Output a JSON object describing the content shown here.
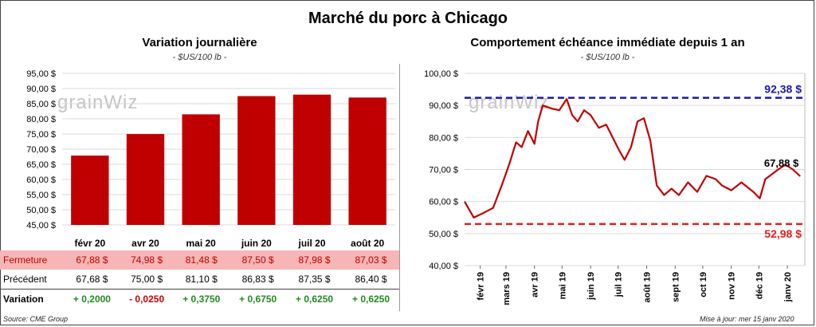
{
  "title": "Marché du porc à Chicago",
  "left": {
    "subtitle": "Variation journalière",
    "unit": "- $US/100 lb -",
    "watermark": "grainWiz",
    "table": {
      "close_label": "Fermeture",
      "prev_label": "Précédent",
      "var_label": "Variation",
      "close_values": [
        "67,88 $",
        "74,98 $",
        "81,48 $",
        "87,50 $",
        "87,98 $",
        "87,03 $"
      ],
      "prev_values": [
        "67,68 $",
        "75,00 $",
        "81,10 $",
        "86,83 $",
        "87,35 $",
        "86,40 $"
      ],
      "var_values": [
        "+ 0,2000",
        "- 0,0250",
        "+ 0,3750",
        "+ 0,6750",
        "+ 0,6250",
        "+ 0,6250"
      ]
    },
    "source": "Source: CME Group"
  },
  "right": {
    "subtitle": "Comportement  échéance immédiate depuis 1 an",
    "unit": "- $US/100 lb -",
    "watermark": "grainWiz",
    "update": "Mise à jour: mer 15 janv 2020"
  },
  "colors": {
    "bar": "#c00000",
    "line": "#c00000",
    "max_line": "#1a1aa6",
    "min_line": "#e02020",
    "positive": "#1e8c1e",
    "negative": "#d00000"
  },
  "chart_data": [
    {
      "type": "bar",
      "title": "Variation journalière",
      "ylabel": "- $US/100 lb -",
      "categories": [
        "févr 20",
        "avr 20",
        "mai 20",
        "juin 20",
        "juil 20",
        "août 20"
      ],
      "values": [
        67.88,
        74.98,
        81.48,
        87.5,
        87.98,
        87.03
      ],
      "ylim": [
        45,
        95
      ],
      "yticks": [
        "45,00 $",
        "50,00 $",
        "55,00 $",
        "60,00 $",
        "65,00 $",
        "70,00 $",
        "75,00 $",
        "80,00 $",
        "85,00 $",
        "90,00 $",
        "95,00 $"
      ],
      "grid": true
    },
    {
      "type": "line",
      "title": "Comportement  échéance immédiate depuis 1 an",
      "ylabel": "- $US/100 lb -",
      "ylim": [
        40,
        100
      ],
      "yticks": [
        "40,00 $",
        "50,00 $",
        "60,00 $",
        "70,00 $",
        "80,00 $",
        "90,00 $",
        "100,00 $"
      ],
      "xticks": [
        "févr 19",
        "mars 19",
        "avr 19",
        "mai 19",
        "juin 19",
        "juil 19",
        "août 19",
        "sept 19",
        "oct 19",
        "nov 19",
        "déc 19",
        "janv 20"
      ],
      "x": [
        "2019-01-15",
        "2019-01-25",
        "2019-02-05",
        "2019-02-15",
        "2019-02-25",
        "2019-03-05",
        "2019-03-12",
        "2019-03-18",
        "2019-03-25",
        "2019-04-01",
        "2019-04-05",
        "2019-04-10",
        "2019-04-20",
        "2019-04-28",
        "2019-05-06",
        "2019-05-12",
        "2019-05-18",
        "2019-05-25",
        "2019-06-01",
        "2019-06-10",
        "2019-06-18",
        "2019-06-25",
        "2019-07-02",
        "2019-07-08",
        "2019-07-15",
        "2019-07-22",
        "2019-07-29",
        "2019-08-05",
        "2019-08-12",
        "2019-08-20",
        "2019-08-28",
        "2019-09-05",
        "2019-09-15",
        "2019-09-25",
        "2019-10-05",
        "2019-10-15",
        "2019-10-22",
        "2019-11-01",
        "2019-11-12",
        "2019-11-25",
        "2019-12-02",
        "2019-12-08",
        "2019-12-15",
        "2019-12-22",
        "2019-12-30",
        "2020-01-07",
        "2020-01-15"
      ],
      "y": [
        60.0,
        55.0,
        56.5,
        58.0,
        65.5,
        72.0,
        78.5,
        77.0,
        82.0,
        78.0,
        85.0,
        90.0,
        89.0,
        88.5,
        92.0,
        87.0,
        85.0,
        88.5,
        87.0,
        83.0,
        84.0,
        80.0,
        76.0,
        73.0,
        77.0,
        85.0,
        86.0,
        79.0,
        65.0,
        62.0,
        64.0,
        62.0,
        66.0,
        63.0,
        68.0,
        67.0,
        65.0,
        63.5,
        66.0,
        63.0,
        61.0,
        67.0,
        68.5,
        70.0,
        71.5,
        70.0,
        67.88
      ],
      "reference_lines": [
        {
          "label": "92,38 $",
          "value": 92.38
        },
        {
          "label": "52,98 $",
          "value": 52.98
        }
      ],
      "last_label": "67,88 $",
      "grid": true
    }
  ]
}
